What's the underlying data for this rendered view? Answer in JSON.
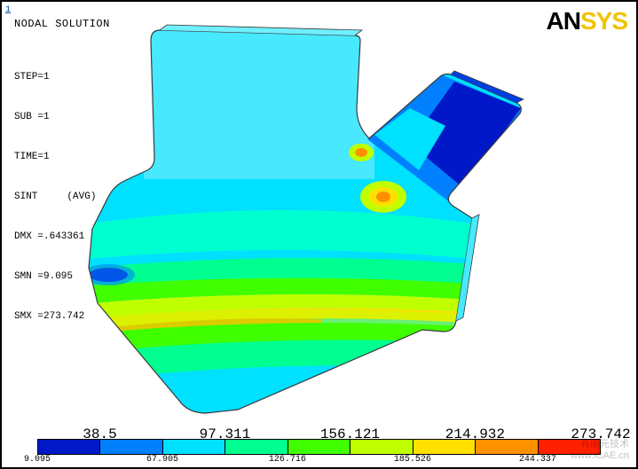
{
  "header": {
    "title": "NODAL SOLUTION",
    "axis_label": "1"
  },
  "logo": {
    "part1": "AN",
    "part2": "SYS"
  },
  "info": {
    "step": "STEP=1",
    "sub": "SUB =1",
    "time": "TIME=1",
    "sint": "SINT     (AVG)",
    "dmx": "DMX =.643361",
    "smn": "SMN =9.095",
    "smx": "SMX =273.742"
  },
  "legend": {
    "colors": [
      "#0018c8",
      "#0080ff",
      "#00e0ff",
      "#00ff90",
      "#40ff00",
      "#c0ff00",
      "#ffe000",
      "#ff9000",
      "#ff2000"
    ],
    "ticks_bottom": [
      {
        "label": "9.095",
        "pos": 0.0
      },
      {
        "label": "67.905",
        "pos": 0.222
      },
      {
        "label": "126.716",
        "pos": 0.444
      },
      {
        "label": "185.526",
        "pos": 0.666
      },
      {
        "label": "244.337",
        "pos": 0.888
      }
    ],
    "ticks_top": [
      {
        "label": "38.5",
        "pos": 0.111
      },
      {
        "label": "97.311",
        "pos": 0.333
      },
      {
        "label": "156.121",
        "pos": 0.555
      },
      {
        "label": "214.932",
        "pos": 0.777
      },
      {
        "label": "273.742",
        "pos": 1.0
      }
    ]
  },
  "model": {
    "type": "fea-contour",
    "background": "#ffffff",
    "outline_color": "#3a3a3a",
    "outline_width": 1.2,
    "fills": {
      "blue": "#0018c8",
      "lblue": "#0080ff",
      "cyan": "#00e0ff",
      "teal": "#00ffd0",
      "green": "#00ff90",
      "ggreen": "#40ff00",
      "ygreen": "#c0ff00",
      "yellow": "#ffe000",
      "orange": "#ff9000",
      "red": "#ff2000"
    }
  },
  "watermark": {
    "line1": "有限元技术",
    "line2": "www.iCAE.cn"
  }
}
